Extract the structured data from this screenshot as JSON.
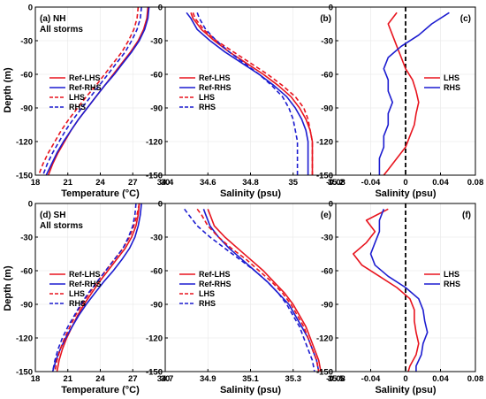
{
  "figure": {
    "ylabel": "Depth (m)",
    "colors": {
      "ref_lhs": "#e8141e",
      "ref_rhs": "#1c1cd0",
      "lhs": "#e8141e",
      "rhs": "#1c1cd0",
      "zero_line": "#000000"
    }
  },
  "chart_data": [
    {
      "id": "a",
      "type": "line",
      "panel_label": "(a) NH",
      "sublabel": "All storms",
      "xlabel": "Temperature (°C)",
      "ylabel": "Depth (m)",
      "xlim": [
        18,
        30
      ],
      "ylim": [
        -150,
        0
      ],
      "xticks": [
        "18",
        "21",
        "24",
        "27",
        "30"
      ],
      "yticks": [
        "0",
        "-30",
        "-60",
        "-90",
        "-120",
        "-150"
      ],
      "legend": "left-middle",
      "series": [
        {
          "name": "Ref-LHS",
          "style": "solid",
          "color": "#e8141e",
          "depth": [
            0,
            -10,
            -20,
            -30,
            -40,
            -50,
            -60,
            -70,
            -80,
            -90,
            -100,
            -110,
            -120,
            -130,
            -140,
            -150
          ],
          "values": [
            28.4,
            28.3,
            28.0,
            27.5,
            26.8,
            26.0,
            25.2,
            24.4,
            23.6,
            22.8,
            22.0,
            21.3,
            20.7,
            20.1,
            19.6,
            19.2
          ]
        },
        {
          "name": "Ref-RHS",
          "style": "solid",
          "color": "#1c1cd0",
          "depth": [
            0,
            -10,
            -20,
            -30,
            -40,
            -50,
            -60,
            -70,
            -80,
            -90,
            -100,
            -110,
            -120,
            -130,
            -140,
            -150
          ],
          "values": [
            28.5,
            28.4,
            28.1,
            27.6,
            26.9,
            26.1,
            25.3,
            24.4,
            23.6,
            22.8,
            22.0,
            21.3,
            20.6,
            20.0,
            19.5,
            19.0
          ]
        },
        {
          "name": "LHS",
          "style": "dashed",
          "color": "#e8141e",
          "depth": [
            0,
            -10,
            -20,
            -30,
            -40,
            -50,
            -60,
            -70,
            -80,
            -90,
            -100,
            -110,
            -120,
            -130,
            -140,
            -150
          ],
          "values": [
            27.5,
            27.4,
            27.1,
            26.6,
            26.0,
            25.2,
            24.4,
            23.6,
            22.7,
            21.9,
            21.1,
            20.4,
            19.8,
            19.2,
            18.7,
            18.3
          ]
        },
        {
          "name": "RHS",
          "style": "dashed",
          "color": "#1c1cd0",
          "depth": [
            0,
            -10,
            -20,
            -30,
            -40,
            -50,
            -60,
            -70,
            -80,
            -90,
            -100,
            -110,
            -120,
            -130,
            -140,
            -150
          ],
          "values": [
            27.8,
            27.7,
            27.4,
            26.9,
            26.3,
            25.5,
            24.7,
            23.9,
            23.1,
            22.3,
            21.5,
            20.8,
            20.2,
            19.6,
            19.1,
            18.7
          ]
        }
      ]
    },
    {
      "id": "b",
      "type": "line",
      "panel_label": "(b)",
      "sublabel": "",
      "xlabel": "Salinity (psu)",
      "ylabel": "",
      "xlim": [
        34.4,
        35.2
      ],
      "ylim": [
        -150,
        0
      ],
      "xticks": [
        "34.4",
        "34.6",
        "34.8",
        "35",
        "35.2"
      ],
      "yticks": [
        "0",
        "-30",
        "-60",
        "-90",
        "-120",
        "-150"
      ],
      "legend": "left-middle",
      "series": [
        {
          "name": "Ref-LHS",
          "style": "solid",
          "color": "#e8141e",
          "depth": [
            -5,
            -10,
            -20,
            -30,
            -40,
            -50,
            -60,
            -70,
            -80,
            -90,
            -100,
            -110,
            -120,
            -130,
            -140,
            -150
          ],
          "values": [
            34.52,
            34.53,
            34.57,
            34.63,
            34.7,
            34.78,
            34.86,
            34.93,
            34.99,
            35.03,
            35.06,
            35.08,
            35.09,
            35.09,
            35.09,
            35.09
          ]
        },
        {
          "name": "Ref-RHS",
          "style": "solid",
          "color": "#1c1cd0",
          "depth": [
            -5,
            -10,
            -20,
            -30,
            -40,
            -50,
            -60,
            -70,
            -80,
            -90,
            -100,
            -110,
            -120,
            -130,
            -140,
            -150
          ],
          "values": [
            34.5,
            34.52,
            34.55,
            34.61,
            34.68,
            34.76,
            34.84,
            34.91,
            34.97,
            35.01,
            35.04,
            35.06,
            35.07,
            35.07,
            35.07,
            35.07
          ]
        },
        {
          "name": "LHS",
          "style": "dashed",
          "color": "#e8141e",
          "depth": [
            -5,
            -10,
            -20,
            -30,
            -40,
            -50,
            -60,
            -70,
            -80,
            -90,
            -100,
            -110,
            -120,
            -130,
            -140,
            -150
          ],
          "values": [
            34.53,
            34.54,
            34.58,
            34.64,
            34.72,
            34.8,
            34.88,
            34.95,
            35.01,
            35.05,
            35.07,
            35.08,
            35.09,
            35.09,
            35.09,
            35.09
          ]
        },
        {
          "name": "RHS",
          "style": "dashed",
          "color": "#1c1cd0",
          "depth": [
            -5,
            -10,
            -20,
            -30,
            -40,
            -50,
            -60,
            -70,
            -80,
            -90,
            -100,
            -110,
            -120,
            -130,
            -140,
            -150
          ],
          "values": [
            34.55,
            34.56,
            34.59,
            34.64,
            34.7,
            34.77,
            34.84,
            34.9,
            34.95,
            34.98,
            35.0,
            35.01,
            35.02,
            35.02,
            35.02,
            35.02
          ]
        }
      ]
    },
    {
      "id": "c",
      "type": "line",
      "panel_label": "(c)",
      "sublabel": "",
      "xlabel": "Salinity (psu)",
      "ylabel": "",
      "xlim": [
        -0.08,
        0.08
      ],
      "ylim": [
        -150,
        0
      ],
      "xticks": [
        "-0.08",
        "-0.04",
        "0",
        "0.04",
        "0.08"
      ],
      "yticks": [
        "0",
        "-30",
        "-60",
        "-90",
        "-120",
        "-150"
      ],
      "legend": "right-middle",
      "zero_line": "dashed",
      "series": [
        {
          "name": "LHS",
          "style": "solid",
          "color": "#e8141e",
          "depth": [
            -5,
            -15,
            -25,
            -35,
            -45,
            -55,
            -65,
            -75,
            -85,
            -95,
            -105,
            -115,
            -125,
            -135,
            -145,
            -150
          ],
          "values": [
            -0.01,
            -0.02,
            -0.015,
            -0.01,
            -0.005,
            0.0,
            0.008,
            0.012,
            0.015,
            0.012,
            0.01,
            0.005,
            0.0,
            -0.01,
            -0.02,
            -0.025
          ]
        },
        {
          "name": "RHS",
          "style": "solid",
          "color": "#1c1cd0",
          "depth": [
            -5,
            -15,
            -25,
            -35,
            -45,
            -55,
            -65,
            -75,
            -85,
            -95,
            -105,
            -115,
            -125,
            -135,
            -145,
            -150
          ],
          "values": [
            0.05,
            0.03,
            0.015,
            -0.005,
            -0.02,
            -0.025,
            -0.02,
            -0.02,
            -0.015,
            -0.02,
            -0.02,
            -0.025,
            -0.025,
            -0.03,
            -0.03,
            -0.03
          ]
        }
      ]
    },
    {
      "id": "d",
      "type": "line",
      "panel_label": "(d) SH",
      "sublabel": "All storms",
      "xlabel": "Temperature (°C)",
      "ylabel": "Depth (m)",
      "xlim": [
        18,
        30
      ],
      "ylim": [
        -150,
        0
      ],
      "xticks": [
        "18",
        "21",
        "24",
        "27",
        "30"
      ],
      "yticks": [
        "0",
        "-30",
        "-60",
        "-90",
        "-120",
        "-150"
      ],
      "legend": "left-middle",
      "series": [
        {
          "name": "Ref-LHS",
          "style": "solid",
          "color": "#e8141e",
          "depth": [
            0,
            -10,
            -20,
            -30,
            -40,
            -50,
            -60,
            -70,
            -80,
            -90,
            -100,
            -110,
            -120,
            -130,
            -140,
            -150
          ],
          "values": [
            27.6,
            27.5,
            27.3,
            26.9,
            26.3,
            25.5,
            24.7,
            23.9,
            23.2,
            22.5,
            21.9,
            21.4,
            20.9,
            20.5,
            20.2,
            20.0
          ]
        },
        {
          "name": "Ref-RHS",
          "style": "solid",
          "color": "#1c1cd0",
          "depth": [
            0,
            -10,
            -20,
            -30,
            -40,
            -50,
            -60,
            -70,
            -80,
            -90,
            -100,
            -110,
            -120,
            -130,
            -140,
            -150
          ],
          "values": [
            27.8,
            27.7,
            27.5,
            27.2,
            26.7,
            26.0,
            25.2,
            24.3,
            23.5,
            22.7,
            22.0,
            21.4,
            20.8,
            20.3,
            19.9,
            19.6
          ]
        },
        {
          "name": "LHS",
          "style": "dashed",
          "color": "#e8141e",
          "depth": [
            0,
            -10,
            -20,
            -30,
            -40,
            -50,
            -60,
            -70,
            -80,
            -90,
            -100,
            -110,
            -120,
            -130,
            -140,
            -150
          ],
          "values": [
            27.6,
            27.4,
            27.1,
            26.7,
            26.1,
            25.3,
            24.5,
            23.7,
            23.0,
            22.3,
            21.7,
            21.2,
            20.7,
            20.3,
            20.0,
            19.8
          ]
        },
        {
          "name": "RHS",
          "style": "dashed",
          "color": "#1c1cd0",
          "depth": [
            0,
            -10,
            -20,
            -30,
            -40,
            -50,
            -60,
            -70,
            -80,
            -90,
            -100,
            -110,
            -120,
            -130,
            -140,
            -150
          ],
          "values": [
            27.3,
            27.2,
            27.0,
            26.6,
            26.1,
            25.3,
            24.5,
            23.7,
            22.9,
            22.2,
            21.6,
            21.0,
            20.5,
            20.1,
            19.8,
            19.6
          ]
        }
      ]
    },
    {
      "id": "e",
      "type": "line",
      "panel_label": "(e)",
      "sublabel": "",
      "xlabel": "Salinity (psu)",
      "ylabel": "",
      "xlim": [
        34.7,
        35.5
      ],
      "ylim": [
        -150,
        0
      ],
      "xticks": [
        "34.7",
        "34.9",
        "35.1",
        "35.3",
        "35.5"
      ],
      "yticks": [
        "0",
        "-30",
        "-60",
        "-90",
        "-120",
        "-150"
      ],
      "legend": "left-middle",
      "series": [
        {
          "name": "Ref-LHS",
          "style": "solid",
          "color": "#e8141e",
          "depth": [
            -5,
            -10,
            -20,
            -30,
            -40,
            -50,
            -60,
            -70,
            -80,
            -90,
            -100,
            -110,
            -120,
            -130,
            -140,
            -150
          ],
          "values": [
            34.9,
            34.91,
            34.93,
            34.98,
            35.04,
            35.1,
            35.16,
            35.21,
            35.26,
            35.3,
            35.33,
            35.36,
            35.38,
            35.4,
            35.42,
            35.43
          ]
        },
        {
          "name": "Ref-RHS",
          "style": "solid",
          "color": "#1c1cd0",
          "depth": [
            -5,
            -10,
            -20,
            -30,
            -40,
            -50,
            -60,
            -70,
            -80,
            -90,
            -100,
            -110,
            -120,
            -130,
            -140,
            -150
          ],
          "values": [
            34.88,
            34.89,
            34.91,
            34.95,
            35.0,
            35.06,
            35.12,
            35.18,
            35.23,
            35.28,
            35.31,
            35.34,
            35.37,
            35.39,
            35.41,
            35.42
          ]
        },
        {
          "name": "LHS",
          "style": "dashed",
          "color": "#e8141e",
          "depth": [
            -5,
            -10,
            -20,
            -30,
            -40,
            -50,
            -60,
            -70,
            -80,
            -90,
            -100,
            -110,
            -120,
            -130,
            -140,
            -150
          ],
          "values": [
            34.85,
            34.87,
            34.9,
            34.95,
            35.01,
            35.08,
            35.14,
            35.2,
            35.25,
            35.29,
            35.32,
            35.35,
            35.37,
            35.39,
            35.41,
            35.42
          ]
        },
        {
          "name": "RHS",
          "style": "dashed",
          "color": "#1c1cd0",
          "depth": [
            -5,
            -10,
            -20,
            -30,
            -40,
            -50,
            -60,
            -70,
            -80,
            -90,
            -100,
            -110,
            -120,
            -130,
            -140,
            -150
          ],
          "values": [
            34.79,
            34.81,
            34.85,
            34.91,
            34.98,
            35.05,
            35.12,
            35.18,
            35.23,
            35.27,
            35.3,
            35.33,
            35.35,
            35.37,
            35.39,
            35.4
          ]
        }
      ]
    },
    {
      "id": "f",
      "type": "line",
      "panel_label": "(f)",
      "sublabel": "",
      "xlabel": "Salinity (psu)",
      "ylabel": "",
      "xlim": [
        -0.08,
        0.08
      ],
      "ylim": [
        -150,
        0
      ],
      "xticks": [
        "-0.08",
        "-0.04",
        "0",
        "0.04",
        "0.08"
      ],
      "yticks": [
        "0",
        "-30",
        "-60",
        "-90",
        "-120",
        "-150"
      ],
      "legend": "right-middle",
      "zero_line": "dashed",
      "series": [
        {
          "name": "LHS",
          "style": "solid",
          "color": "#e8141e",
          "depth": [
            -5,
            -15,
            -25,
            -35,
            -45,
            -55,
            -65,
            -75,
            -85,
            -95,
            -105,
            -115,
            -125,
            -135,
            -145,
            -150
          ],
          "values": [
            -0.02,
            -0.045,
            -0.035,
            -0.045,
            -0.06,
            -0.05,
            -0.03,
            -0.01,
            0.005,
            0.01,
            0.01,
            0.012,
            0.015,
            0.012,
            0.005,
            0.003
          ]
        },
        {
          "name": "RHS",
          "style": "solid",
          "color": "#1c1cd0",
          "depth": [
            -5,
            -15,
            -25,
            -35,
            -45,
            -55,
            -65,
            -75,
            -85,
            -95,
            -105,
            -115,
            -125,
            -135,
            -145,
            -150
          ],
          "values": [
            -0.025,
            -0.03,
            -0.03,
            -0.035,
            -0.04,
            -0.035,
            -0.02,
            0.0,
            0.015,
            0.02,
            0.022,
            0.025,
            0.02,
            0.018,
            0.012,
            0.012
          ]
        }
      ]
    }
  ]
}
